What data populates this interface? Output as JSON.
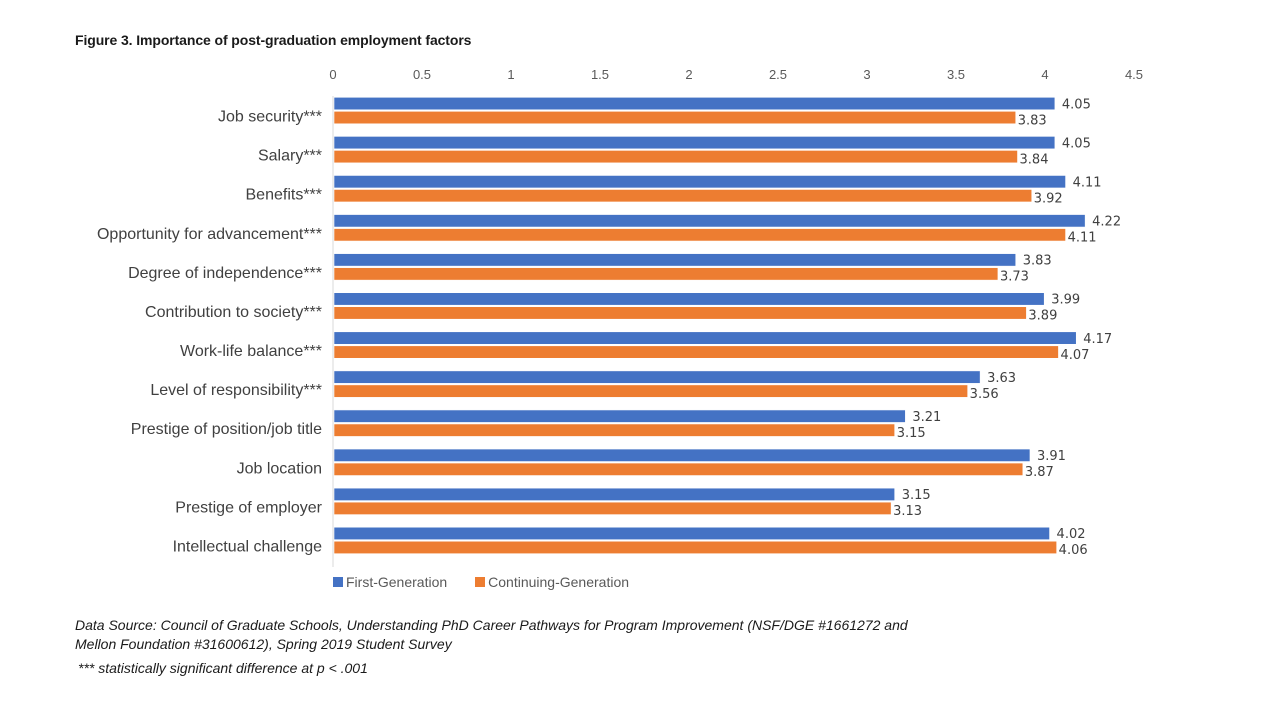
{
  "chart_data": {
    "type": "bar",
    "orientation": "horizontal",
    "title": "Figure 3. Importance of post-graduation employment factors",
    "xlabel": "",
    "ylabel": "",
    "xlim": [
      0,
      4.5
    ],
    "x_ticks": [
      "0",
      "0.5",
      "1",
      "1.5",
      "2",
      "2.5",
      "3",
      "3.5",
      "4",
      "4.5"
    ],
    "x_tick_values": [
      0,
      0.5,
      1,
      1.5,
      2,
      2.5,
      3,
      3.5,
      4,
      4.5
    ],
    "x_axis_position": "top",
    "grid": false,
    "legend_position": "bottom",
    "categories": [
      "Job security***",
      "Salary***",
      "Benefits***",
      "Opportunity for advancement***",
      "Degree of independence***",
      "Contribution to society***",
      "Work-life balance***",
      "Level of responsibility***",
      "Prestige of position/job title",
      "Job location",
      "Prestige of employer",
      "Intellectual challenge"
    ],
    "series": [
      {
        "name": "First-Generation",
        "color": "#4472C4",
        "values": [
          4.05,
          4.05,
          4.11,
          4.22,
          3.83,
          3.99,
          4.17,
          3.63,
          3.21,
          3.91,
          3.15,
          4.02
        ],
        "labels": [
          "4.05",
          "4.05",
          "4.11",
          "4.22",
          "3.83",
          "3.99",
          "4.17",
          "3.63",
          "3.21",
          "3.91",
          "3.15",
          "4.02"
        ]
      },
      {
        "name": "Continuing-Generation",
        "color": "#ED7D31",
        "values": [
          3.83,
          3.84,
          3.92,
          4.11,
          3.73,
          3.89,
          4.07,
          3.56,
          3.15,
          3.87,
          3.13,
          4.06
        ],
        "labels": [
          "3.83",
          "3.84",
          "3.92",
          "4.11",
          "3.73",
          "3.89",
          "4.07",
          "3.56",
          "3.15",
          "3.87",
          "3.13",
          "4.06"
        ]
      }
    ]
  },
  "footer": {
    "source": "Data Source: Council of Graduate Schools, Understanding PhD Career Pathways for Program Improvement (NSF/DGE #1661272 and Mellon Foundation #31600612), Spring 2019 Student Survey",
    "note": "*** statistically significant difference at p < .001"
  }
}
